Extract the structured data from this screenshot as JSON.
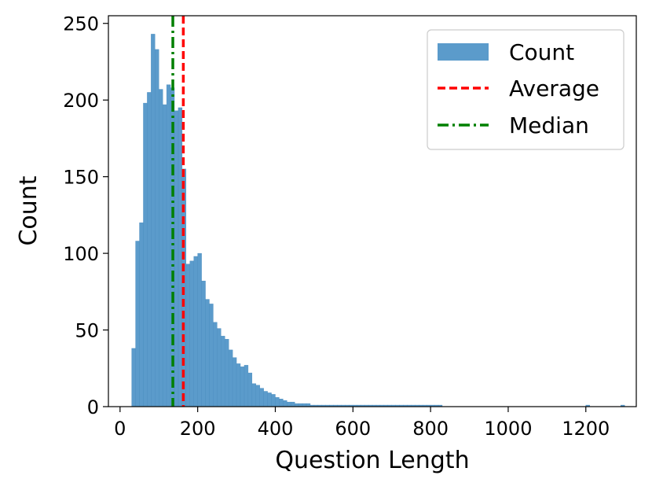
{
  "chart_data": {
    "type": "histogram",
    "xlabel": "Question Length",
    "ylabel": "Count",
    "xlim": [
      -30,
      1330
    ],
    "ylim": [
      0,
      255
    ],
    "x_ticks": [
      0,
      200,
      400,
      600,
      800,
      1000,
      1200
    ],
    "y_ticks": [
      0,
      50,
      100,
      150,
      200,
      250
    ],
    "bin_width": 10,
    "bins_start": [
      30,
      40,
      50,
      60,
      70,
      80,
      90,
      100,
      110,
      120,
      130,
      140,
      150,
      160,
      170,
      180,
      190,
      200,
      210,
      220,
      230,
      240,
      250,
      260,
      270,
      280,
      290,
      300,
      310,
      320,
      330,
      340,
      350,
      360,
      370,
      380,
      390,
      400,
      410,
      420,
      430,
      440,
      450,
      460,
      470,
      480,
      490,
      500,
      510,
      520,
      530,
      540,
      550,
      560,
      570,
      580,
      590,
      600,
      610,
      620,
      630,
      640,
      650,
      660,
      670,
      680,
      690,
      700,
      710,
      720,
      730,
      740,
      750,
      760,
      770,
      780,
      790,
      800,
      810,
      820,
      1200,
      1290
    ],
    "counts": [
      38,
      108,
      120,
      198,
      205,
      243,
      233,
      207,
      197,
      210,
      208,
      193,
      195,
      155,
      93,
      95,
      98,
      100,
      82,
      70,
      67,
      55,
      51,
      46,
      44,
      37,
      32,
      28,
      26,
      27,
      22,
      15,
      14,
      12,
      10,
      9,
      8,
      6,
      5,
      4,
      3,
      3,
      2,
      2,
      2,
      2,
      1,
      1,
      1,
      1,
      1,
      1,
      1,
      1,
      1,
      1,
      1,
      1,
      1,
      1,
      1,
      1,
      1,
      1,
      1,
      1,
      1,
      1,
      1,
      1,
      1,
      1,
      1,
      1,
      1,
      1,
      1,
      1,
      1,
      1,
      1,
      1
    ],
    "average": 163,
    "median": 136,
    "legend": {
      "placement": "top-right",
      "entries": [
        "Count",
        "Average",
        "Median"
      ]
    },
    "colors": {
      "bars": "#5b9bcb",
      "bar_edge": "#4a8cbf",
      "average_line": "#ff0000",
      "median_line": "#008000"
    }
  }
}
